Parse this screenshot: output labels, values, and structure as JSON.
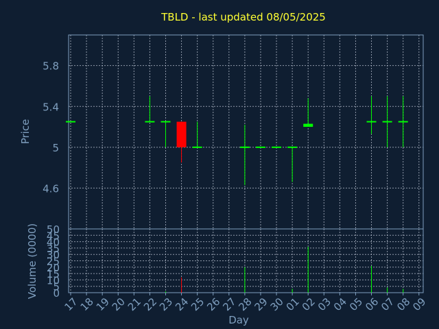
{
  "colors": {
    "background": "#0f1e31",
    "title": "#ffff33",
    "axis_text": "#7f9fbf",
    "grid": "#b0b8c8",
    "axis": "#7f9fbf",
    "up": "#00ff00",
    "down": "#ff0000"
  },
  "chart_data": {
    "type": "candlestick",
    "title": "TBLD - last updated 08/05/2025",
    "price_ylabel": "Price",
    "volume_ylabel": "Volume (0000)",
    "xlabel": "Day",
    "price_ylim": [
      4.2,
      6.1
    ],
    "price_ticks": [
      "4.6",
      "5",
      "5.4",
      "5.8"
    ],
    "volume_ylim": [
      0,
      50
    ],
    "volume_ticks": [
      "0",
      "5",
      "10",
      "15",
      "20",
      "25",
      "30",
      "35",
      "40",
      "45",
      "50"
    ],
    "x_labels": [
      "17",
      "18",
      "19",
      "20",
      "21",
      "22",
      "23",
      "24",
      "25",
      "26",
      "27",
      "28",
      "29",
      "30",
      "01",
      "02",
      "03",
      "04",
      "05",
      "06",
      "07",
      "08",
      "09"
    ],
    "grid": true,
    "candles": [
      {
        "day_index": 0,
        "open": 5.25,
        "high": 5.25,
        "low": 5.25,
        "close": 5.25,
        "volume": 0
      },
      {
        "day_index": 5,
        "open": 5.25,
        "high": 5.5,
        "low": 5.25,
        "close": 5.25,
        "volume": 0
      },
      {
        "day_index": 6,
        "open": 5.25,
        "high": 5.25,
        "low": 5.0,
        "close": 5.25,
        "volume": 1
      },
      {
        "day_index": 7,
        "open": 5.25,
        "high": 5.25,
        "low": 4.85,
        "close": 5.0,
        "volume": 12
      },
      {
        "day_index": 8,
        "open": 5.0,
        "high": 5.25,
        "low": 5.0,
        "close": 5.0,
        "volume": 0
      },
      {
        "day_index": 11,
        "open": 5.0,
        "high": 5.22,
        "low": 4.63,
        "close": 5.0,
        "volume": 20
      },
      {
        "day_index": 12,
        "open": 5.0,
        "high": 5.0,
        "low": 5.0,
        "close": 5.0,
        "volume": 0
      },
      {
        "day_index": 13,
        "open": 5.0,
        "high": 5.0,
        "low": 5.0,
        "close": 5.0,
        "volume": 0
      },
      {
        "day_index": 14,
        "open": 5.0,
        "high": 5.0,
        "low": 4.66,
        "close": 5.0,
        "volume": 3
      },
      {
        "day_index": 15,
        "open": 5.2,
        "high": 5.48,
        "low": 5.2,
        "close": 5.23,
        "volume": 36
      },
      {
        "day_index": 19,
        "open": 5.25,
        "high": 5.5,
        "low": 5.13,
        "close": 5.25,
        "volume": 21
      },
      {
        "day_index": 20,
        "open": 5.25,
        "high": 5.5,
        "low": 5.0,
        "close": 5.25,
        "volume": 4
      },
      {
        "day_index": 21,
        "open": 5.25,
        "high": 5.5,
        "low": 5.0,
        "close": 5.25,
        "volume": 3
      }
    ]
  }
}
